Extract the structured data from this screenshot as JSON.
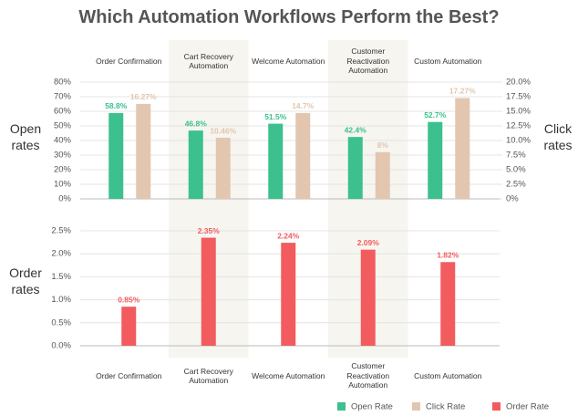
{
  "chart_data": [
    {
      "type": "bar",
      "title": "Which Automation Workflows Perform the Best?",
      "categories": [
        "Order Confirmation",
        "Cart Recovery Automation",
        "Welcome Automation",
        "Customer Reactivation Automation",
        "Custom Automation"
      ],
      "ylabel": "Open rates",
      "y2label": "Click rates",
      "ylim": [
        0,
        80
      ],
      "yticks": [
        {
          "value": 0,
          "label": "0%"
        },
        {
          "value": 10,
          "label": "10%"
        },
        {
          "value": 20,
          "label": "20%"
        },
        {
          "value": 30,
          "label": "30%"
        },
        {
          "value": 40,
          "label": "40%"
        },
        {
          "value": 50,
          "label": "50%"
        },
        {
          "value": 60,
          "label": "60%"
        },
        {
          "value": 70,
          "label": "70%"
        },
        {
          "value": 80,
          "label": "80%"
        }
      ],
      "y2lim": [
        0,
        20
      ],
      "y2ticks": [
        {
          "value": 0,
          "label": "0%"
        },
        {
          "value": 2.5,
          "label": "2.5%"
        },
        {
          "value": 5,
          "label": "5.0%"
        },
        {
          "value": 7.5,
          "label": "7.5%"
        },
        {
          "value": 10,
          "label": "10.0%"
        },
        {
          "value": 12.5,
          "label": "12.5%"
        },
        {
          "value": 15,
          "label": "15.0%"
        },
        {
          "value": 17.5,
          "label": "17.5%"
        },
        {
          "value": 20,
          "label": "20.0%"
        }
      ],
      "grid": true,
      "series": [
        {
          "name": "Open Rate",
          "color": "#3cc08e",
          "values": [
            58.8,
            46.8,
            51.5,
            42.4,
            52.7
          ],
          "value_labels": [
            "58.8%",
            "46.8%",
            "51.5%",
            "42.4%",
            "52.7%"
          ]
        },
        {
          "name": "Click Rate",
          "color": "#e2c6b0",
          "axis": "y2",
          "values": [
            16.27,
            10.46,
            14.7,
            8,
            17.27
          ],
          "value_labels": [
            "16.27%",
            "10.46%",
            "14.7%",
            "8%",
            "17.27%"
          ]
        }
      ]
    },
    {
      "type": "bar",
      "categories": [
        "Order Confirmation",
        "Cart Recovery Automation",
        "Welcome Automation",
        "Customer Reactivation Automation",
        "Custom Automation"
      ],
      "ylabel": "Order rates",
      "ylim": [
        0,
        2.5
      ],
      "yticks": [
        {
          "value": 0,
          "label": "0.0%"
        },
        {
          "value": 0.5,
          "label": "0.5%"
        },
        {
          "value": 1,
          "label": "1.0%"
        },
        {
          "value": 1.5,
          "label": "1.5%"
        },
        {
          "value": 2,
          "label": "2.0%"
        },
        {
          "value": 2.5,
          "label": "2.5%"
        }
      ],
      "grid": true,
      "series": [
        {
          "name": "Order Rate",
          "color": "#f25c5f",
          "values": [
            0.85,
            2.35,
            2.24,
            2.09,
            1.82
          ],
          "value_labels": [
            "0.85%",
            "2.35%",
            "2.24%",
            "2.09%",
            "1.82%"
          ]
        }
      ]
    }
  ]
}
